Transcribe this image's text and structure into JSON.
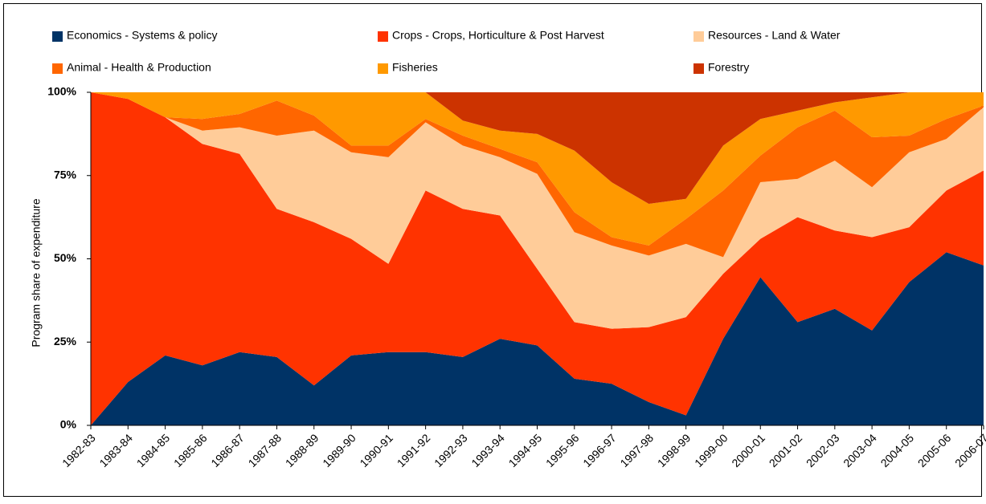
{
  "chart_data": {
    "type": "stacked_area",
    "ylabel": "Program share of expenditure",
    "categories": [
      "1982-83",
      "1983-84",
      "1984-85",
      "1985-86",
      "1986-87",
      "1987-88",
      "1988-89",
      "1989-90",
      "1990-91",
      "1991-92",
      "1992-93",
      "1993-94",
      "1994-95",
      "1995-96",
      "1996-97",
      "1997-98",
      "1998-99",
      "1999-00",
      "2000-01",
      "2001-02",
      "2002-03",
      "2003-04",
      "2004-05",
      "2005-06",
      "2006-07"
    ],
    "series": [
      {
        "name": "Economics - Systems & policy",
        "color": "#003366",
        "values": [
          0,
          13,
          21,
          18,
          22,
          20.5,
          12,
          21,
          22,
          22,
          20.5,
          26,
          24,
          14,
          12.5,
          7,
          3,
          26,
          44.5,
          31,
          35,
          28.5,
          43,
          52,
          48
        ]
      },
      {
        "name": "Crops - Crops, Horticulture & Post Harvest",
        "color": "#ff3300",
        "values": [
          100,
          85,
          71.5,
          66.5,
          59.5,
          44.5,
          49,
          35,
          26.5,
          48.5,
          44.5,
          37,
          23,
          17,
          16.5,
          22.5,
          29.5,
          19.5,
          11.5,
          31.5,
          23.5,
          28,
          16.5,
          18.5,
          28.5
        ]
      },
      {
        "name": "Resources - Land & Water",
        "color": "#ffcc99",
        "values": [
          0,
          0,
          0,
          4,
          8,
          22,
          27.5,
          26,
          32,
          20.5,
          19,
          17.5,
          28.5,
          27,
          25,
          21.5,
          22,
          5,
          17,
          11.5,
          21,
          15,
          22.5,
          15.5,
          19
        ]
      },
      {
        "name": "Animal - Health & Production",
        "color": "#ff6600",
        "values": [
          0,
          0,
          0,
          3.5,
          4,
          10.5,
          4.5,
          2,
          3.5,
          1,
          3,
          2.5,
          3.5,
          6,
          2.5,
          3,
          7.5,
          20,
          8,
          15.5,
          15,
          15,
          5,
          6,
          0.5
        ]
      },
      {
        "name": "Fisheries",
        "color": "#ff9900",
        "values": [
          0,
          2,
          7.5,
          8,
          6.5,
          2.5,
          7,
          16,
          16,
          8,
          4.5,
          5.5,
          8.5,
          18.5,
          16.5,
          12.5,
          6,
          13.5,
          11,
          5,
          2.5,
          12,
          13,
          8,
          4
        ]
      },
      {
        "name": "Forestry",
        "color": "#cc3300",
        "values": [
          0,
          0,
          0,
          0,
          0,
          0,
          0,
          0,
          0,
          0,
          8.5,
          11.5,
          12.5,
          17.5,
          27,
          33.5,
          32,
          16,
          8,
          5.5,
          3,
          1.5,
          0,
          0,
          0
        ]
      }
    ],
    "ylim": [
      0,
      100
    ],
    "yticks": [
      {
        "value": 0,
        "label": "0%"
      },
      {
        "value": 25,
        "label": "25%"
      },
      {
        "value": 50,
        "label": "50%"
      },
      {
        "value": 75,
        "label": "75%"
      },
      {
        "value": 100,
        "label": "100%"
      }
    ],
    "grid": false
  }
}
